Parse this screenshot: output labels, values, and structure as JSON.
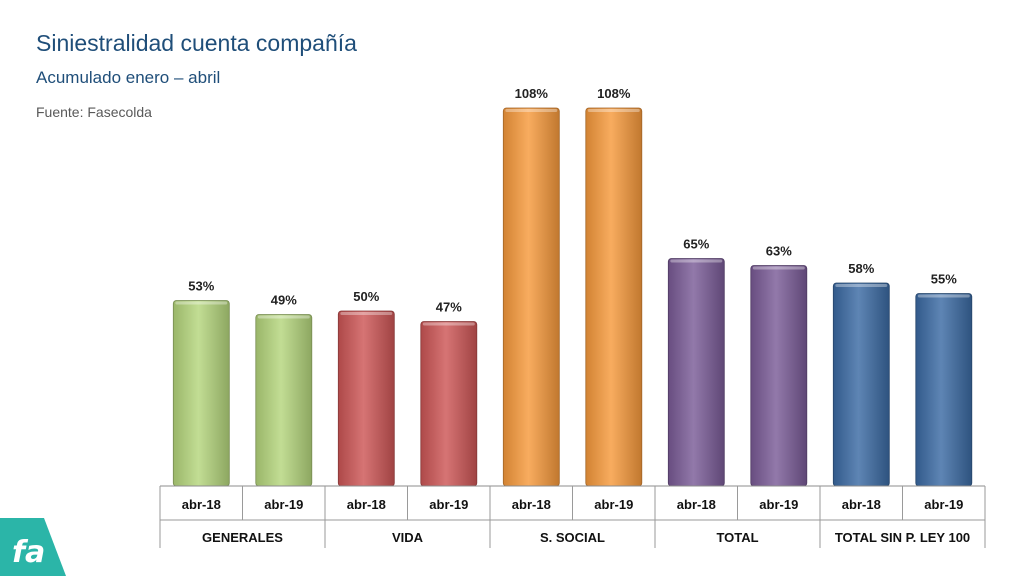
{
  "header": {
    "title": "Siniestralidad cuenta compañía",
    "subtitle": "Acumulado enero – abril",
    "source": "Fuente: Fasecolda"
  },
  "logo": {
    "text": "fa",
    "color": "#2bb5a8"
  },
  "chart_data": {
    "type": "bar",
    "ylim": [
      0,
      108
    ],
    "grid": false,
    "legend": "none",
    "categories": [
      "abr-18",
      "abr-19",
      "abr-18",
      "abr-19",
      "abr-18",
      "abr-19",
      "abr-18",
      "abr-19",
      "abr-18",
      "abr-19"
    ],
    "groups": [
      {
        "name": "GENERALES",
        "color": "#b5d67c"
      },
      {
        "name": "VIDA",
        "color": "#cd5656"
      },
      {
        "name": "S. SOCIAL",
        "color": "#f79a3c"
      },
      {
        "name": "TOTAL",
        "color": "#7a5b97"
      },
      {
        "name": "TOTAL SIN P. LEY 100",
        "color": "#3b6aa3"
      }
    ],
    "values": [
      53,
      49,
      50,
      47,
      108,
      108,
      65,
      63,
      58,
      55
    ],
    "data_labels": [
      "53%",
      "49%",
      "50%",
      "47%",
      "108%",
      "108%",
      "65%",
      "63%",
      "58%",
      "55%"
    ]
  }
}
